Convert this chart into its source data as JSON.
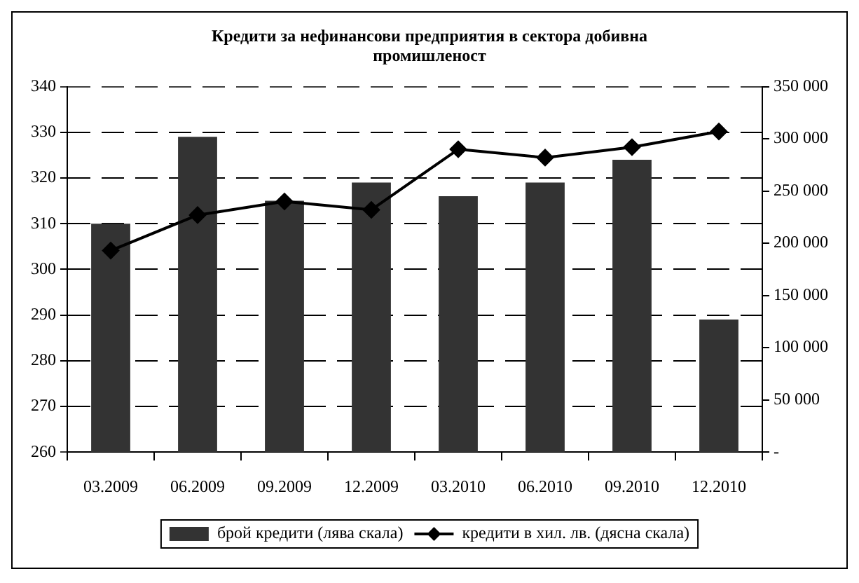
{
  "chart_data": {
    "type": "bar",
    "title": "Кредити за нефинансови предприятия в сектора добивна промишленост",
    "categories": [
      "03.2009",
      "06.2009",
      "09.2009",
      "12.2009",
      "03.2010",
      "06.2010",
      "09.2010",
      "12.2010"
    ],
    "series": [
      {
        "name": "брой кредити (лява скала)",
        "color": "#333333",
        "values": [
          310,
          329,
          315,
          319,
          316,
          319,
          324,
          289
        ]
      },
      {
        "name": "кредити в хил. лв. (дясна скала)",
        "type": "line",
        "axis": "y2",
        "color": "#000000",
        "values": [
          193000,
          227000,
          240000,
          232000,
          290000,
          282000,
          292000,
          307000
        ]
      }
    ],
    "ylim": [
      260,
      340
    ],
    "yticks": [
      260,
      270,
      280,
      290,
      300,
      310,
      320,
      330,
      340
    ],
    "y2lim": [
      0,
      350000
    ],
    "y2ticks": [
      {
        "value": 0,
        "label": "-"
      },
      {
        "value": 50000,
        "label": "50 000"
      },
      {
        "value": 100000,
        "label": "100 000"
      },
      {
        "value": 150000,
        "label": "150 000"
      },
      {
        "value": 200000,
        "label": "200 000"
      },
      {
        "value": 250000,
        "label": "250 000"
      },
      {
        "value": 300000,
        "label": "300 000"
      },
      {
        "value": 350000,
        "label": "350 000"
      }
    ],
    "grid": "y",
    "legend": "bottom",
    "marker": "diamond"
  }
}
